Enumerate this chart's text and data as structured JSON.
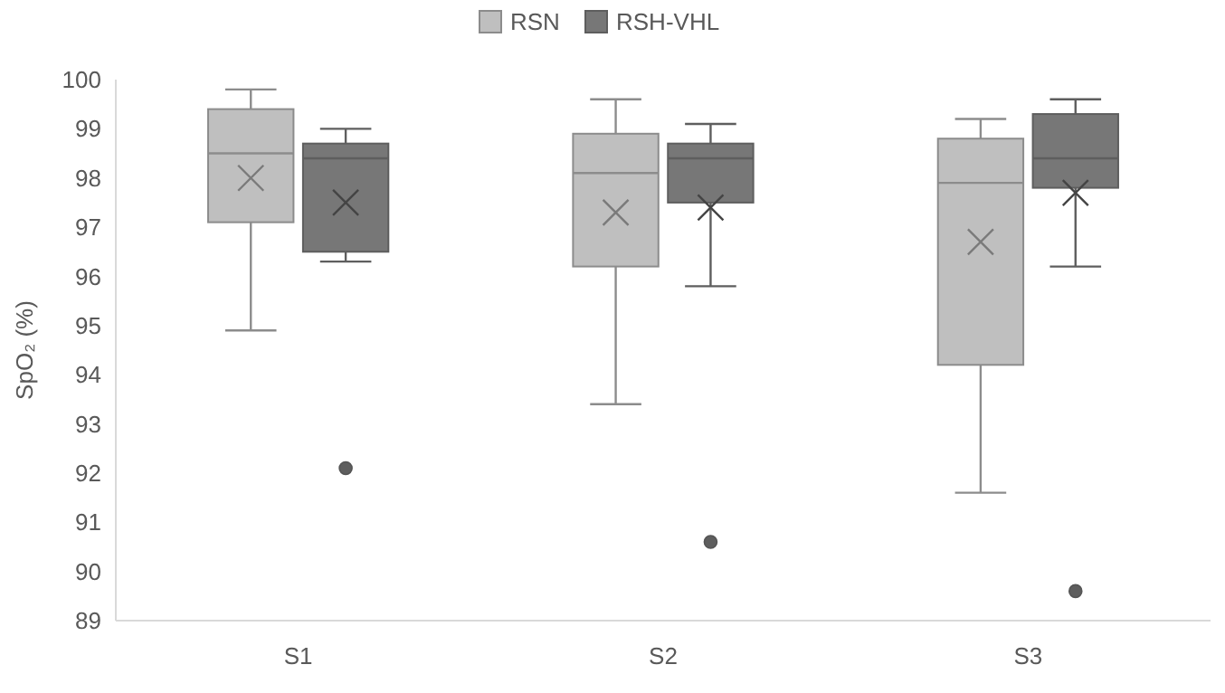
{
  "chart_data": {
    "type": "box",
    "ylabel": "SpO₂ (%)",
    "categories": [
      "S1",
      "S2",
      "S3"
    ],
    "ylim": [
      89,
      100
    ],
    "yticks": [
      89,
      90,
      91,
      92,
      93,
      94,
      95,
      96,
      97,
      98,
      99,
      100
    ],
    "grid": false,
    "legend": "top",
    "series": [
      {
        "name": "RSN",
        "color": "#bfbfbf",
        "boxes": [
          {
            "low": 94.9,
            "q1": 97.1,
            "median": 98.5,
            "q3": 99.4,
            "high": 99.8,
            "mean": 98.0
          },
          {
            "low": 93.4,
            "q1": 96.2,
            "median": 98.1,
            "q3": 98.9,
            "high": 99.6,
            "mean": 97.3
          },
          {
            "low": 91.6,
            "q1": 94.2,
            "median": 97.9,
            "q3": 98.8,
            "high": 99.2,
            "mean": 96.7
          }
        ]
      },
      {
        "name": "RSH-VHL",
        "color": "#777777",
        "boxes": [
          {
            "low": 96.3,
            "q1": 96.5,
            "median": 98.4,
            "q3": 98.7,
            "high": 99.0,
            "mean": 97.5,
            "outliers": [
              92.1
            ]
          },
          {
            "low": 95.8,
            "q1": 97.5,
            "median": 98.4,
            "q3": 98.7,
            "high": 99.1,
            "mean": 97.4,
            "outliers": [
              90.6
            ]
          },
          {
            "low": 96.2,
            "q1": 97.8,
            "median": 98.4,
            "q3": 99.3,
            "high": 99.6,
            "mean": 97.7,
            "outliers": [
              89.6
            ]
          }
        ]
      }
    ]
  }
}
